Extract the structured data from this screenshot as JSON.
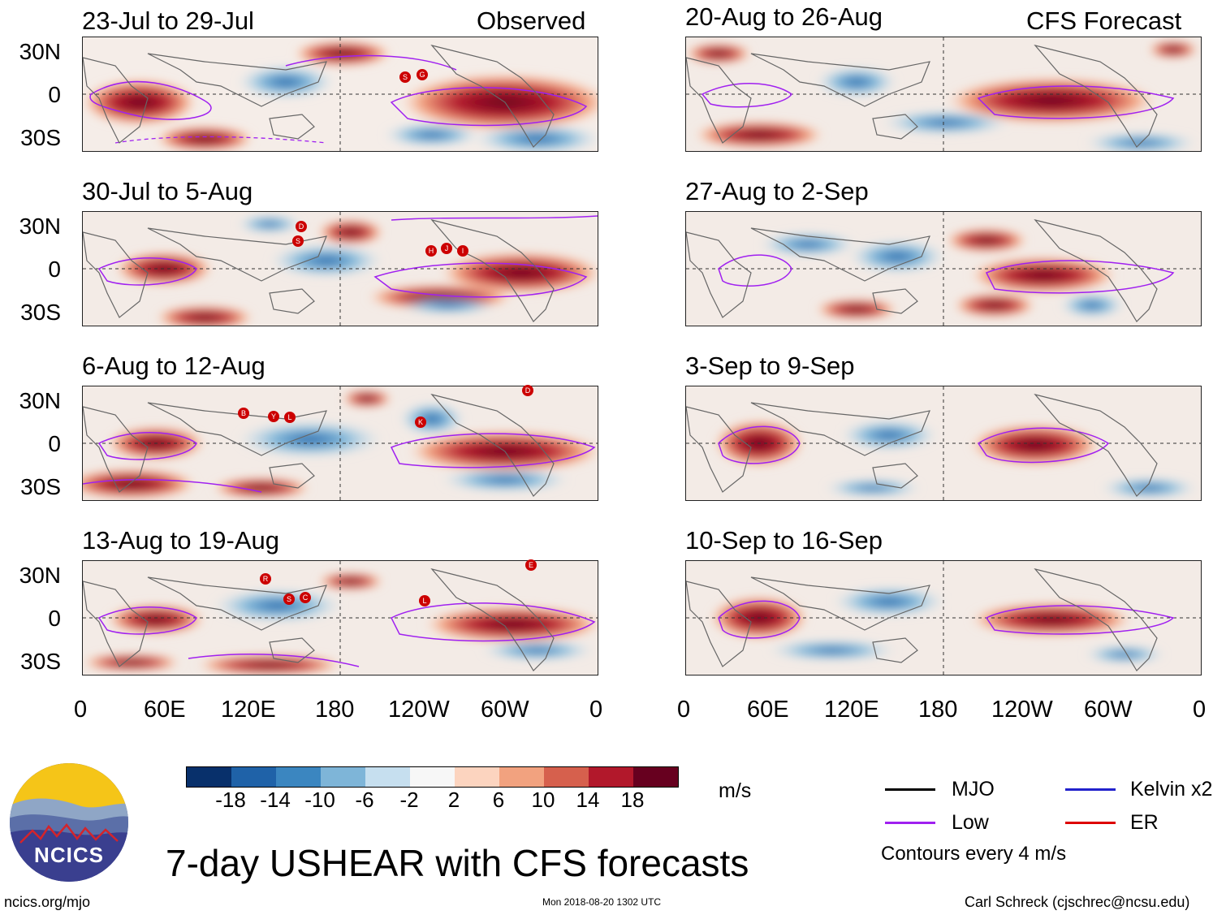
{
  "observed": {
    "header": "Observed",
    "panels": [
      {
        "title": "23-Jul to 29-Jul",
        "markers": [
          "S",
          "G"
        ]
      },
      {
        "title": "30-Jul to 5-Aug",
        "markers": [
          "D",
          "S",
          "H",
          "J",
          "I"
        ]
      },
      {
        "title": "6-Aug to 12-Aug",
        "markers": [
          "B",
          "Y",
          "L",
          "K",
          "D"
        ]
      },
      {
        "title": "13-Aug to 19-Aug",
        "markers": [
          "R",
          "S",
          "C",
          "L",
          "E"
        ]
      }
    ]
  },
  "forecast": {
    "header": "CFS Forecast",
    "panels": [
      {
        "title": "20-Aug to 26-Aug"
      },
      {
        "title": "27-Aug to 2-Sep"
      },
      {
        "title": "3-Sep to 9-Sep"
      },
      {
        "title": "10-Sep to 16-Sep"
      }
    ]
  },
  "lat_labels": [
    "30N",
    "0",
    "30S"
  ],
  "lon_labels": [
    "0",
    "60E",
    "120E",
    "180",
    "120W",
    "60W",
    "0"
  ],
  "colorbar": {
    "labels": [
      "-18",
      "-14",
      "-10",
      "-6",
      "-2",
      "2",
      "6",
      "10",
      "14",
      "18"
    ],
    "colors": [
      "#08306b",
      "#1f62a8",
      "#3b86c0",
      "#7eb5d8",
      "#c6dfef",
      "#f7f7f7",
      "#fcd4bf",
      "#f2a27f",
      "#d6604d",
      "#b2182b",
      "#67001f"
    ],
    "unit": "m/s"
  },
  "legend": {
    "items": [
      {
        "label": "MJO",
        "color": "#000000"
      },
      {
        "label": "Kelvin x2",
        "color": "#2222cc"
      },
      {
        "label": "Low",
        "color": "#a020f0"
      },
      {
        "label": "ER",
        "color": "#dd0000"
      }
    ],
    "note": "Contours every 4 m/s"
  },
  "logo_text": "NCICS",
  "title": "7-day USHEAR with CFS forecasts",
  "footer": {
    "left": "ncics.org/mjo",
    "center": "Mon 2018-08-20 1302 UTC",
    "right": "Carl Schreck (cjschrec@ncsu.edu)"
  }
}
